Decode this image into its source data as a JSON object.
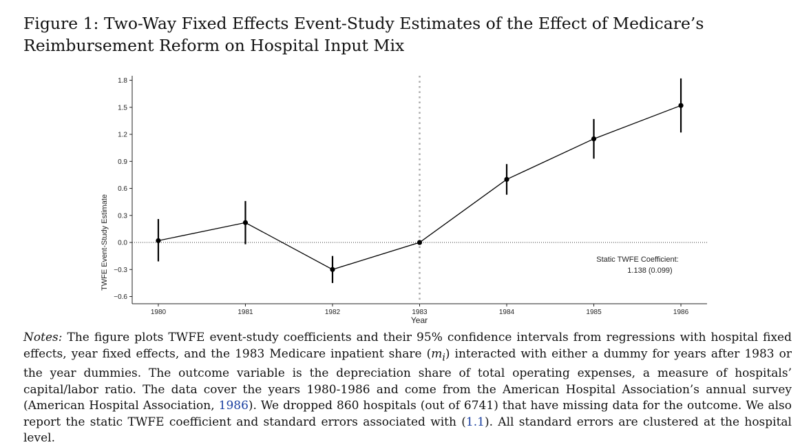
{
  "figure": {
    "title": "Figure 1: Two-Way Fixed Effects Event-Study Estimates of the Effect of Medicare’s Reimbursement Reform on Hospital Input Mix"
  },
  "chart_data": {
    "type": "line",
    "xlabel": "Year",
    "ylabel": "TWFE Event-Study Estimate",
    "x": [
      1980,
      1981,
      1982,
      1983,
      1984,
      1985,
      1986
    ],
    "x_tick_labels": [
      "1980",
      "1981",
      "1982",
      "1983",
      "1984",
      "1985",
      "1986"
    ],
    "y_ticks": [
      -0.6,
      -0.3,
      0.0,
      0.3,
      0.6,
      0.9,
      1.2,
      1.5,
      1.8
    ],
    "y_tick_labels": [
      "−0.6",
      "−0.3",
      "0.0",
      "0.3",
      "0.6",
      "0.9",
      "1.2",
      "1.5",
      "1.8"
    ],
    "ylim": [
      -0.68,
      1.85
    ],
    "xlim": [
      1979.7,
      1986.3
    ],
    "series": [
      {
        "estimates": [
          0.02,
          0.22,
          -0.3,
          0.0,
          0.7,
          1.15,
          1.52
        ],
        "ci_lower": [
          -0.21,
          -0.02,
          -0.45,
          0.0,
          0.53,
          0.93,
          1.22
        ],
        "ci_upper": [
          0.26,
          0.46,
          -0.15,
          0.0,
          0.87,
          1.37,
          1.82
        ]
      }
    ],
    "reference_lines": {
      "horizontal_y": 0.0,
      "vertical_x": 1983
    },
    "annotation": {
      "line1": "Static TWFE Coefficient:",
      "line2": "1.138 (0.099)"
    },
    "grid": false
  },
  "notes": {
    "label": "Notes:",
    "text_a": " The figure plots TWFE event-study coefficients and their 95% confidence intervals from regressions with hospital fixed effects, year fixed effects, and the 1983 Medicare inpatient share (",
    "math_m": "m",
    "math_sub": "i",
    "text_b": ") interacted with either a dummy for years after 1983 or the year dummies. The outcome variable is the depreciation share of total operating expenses, a measure of hospitals’ capital/labor ratio. The data cover the years 1980-1986 and come from the American Hospital Association’s annual survey (American Hospital Association, ",
    "cite_year": "1986",
    "text_c": "). We dropped 860 hospitals (out of 6741) that have missing data for the outcome. We also report the static TWFE coefficient and standard errors associated with (",
    "cite_eq": "1.1",
    "text_d": "). All standard errors are clustered at the hospital level."
  }
}
